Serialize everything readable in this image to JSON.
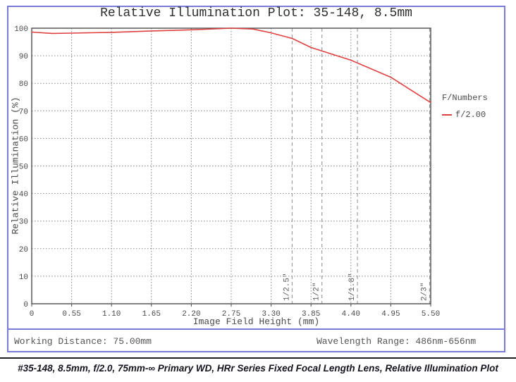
{
  "chart_data": {
    "type": "line",
    "title": "Relative Illumination Plot: 35-148, 8.5mm",
    "xlabel": "Image Field Height (mm)",
    "ylabel": "Relative Illumination (%)",
    "xlim": [
      0,
      5.5
    ],
    "ylim": [
      0,
      100
    ],
    "x_tick_values": [
      0,
      0.55,
      1.1,
      1.65,
      2.2,
      2.75,
      3.3,
      3.85,
      4.4,
      4.95,
      5.5
    ],
    "x_tick_labels": [
      "0",
      "0.55",
      "1.10",
      "1.65",
      "2.20",
      "2.75",
      "3.30",
      "3.85",
      "4.40",
      "4.95",
      "5.50"
    ],
    "y_tick_values": [
      0,
      10,
      20,
      30,
      40,
      50,
      60,
      70,
      80,
      90,
      100
    ],
    "grid": "dotted",
    "legend_position": "right",
    "legend_title": "F/Numbers",
    "series": [
      {
        "name": "f/2.00",
        "color": "#e04040",
        "x": [
          0.0,
          0.28,
          0.55,
          1.1,
          1.65,
          2.2,
          2.75,
          3.05,
          3.3,
          3.59,
          3.85,
          4.4,
          4.95,
          5.5
        ],
        "y": [
          98.6,
          98.1,
          98.2,
          98.5,
          99.0,
          99.4,
          100.0,
          99.7,
          98.3,
          96.3,
          93.0,
          88.4,
          82.2,
          73.0
        ]
      }
    ],
    "sensor_format_markers": [
      {
        "x": 3.59,
        "label": "1/2.5\""
      },
      {
        "x": 4.0,
        "label": "1/2\""
      },
      {
        "x": 4.49,
        "label": "1/1.8\""
      },
      {
        "x": 5.5,
        "label": "2/3\""
      }
    ]
  },
  "footer": {
    "left": "Working Distance: 75.00mm",
    "right": "Wavelength Range: 486nm-656nm"
  },
  "caption": "#35-148, 8.5mm, f/2.0, 75mm-∞ Primary WD, HRr Series Fixed Focal Length Lens, Relative Illumination Plot",
  "colors": {
    "figure_border": "#7a7ad8",
    "curve_red": "#e04040",
    "gridline": "#848484",
    "sensor_line": "#9e9e9e",
    "plot_frame": "#4d4d4d",
    "text": "#4a4a4a",
    "caption_rule": "#1f1f1f"
  }
}
